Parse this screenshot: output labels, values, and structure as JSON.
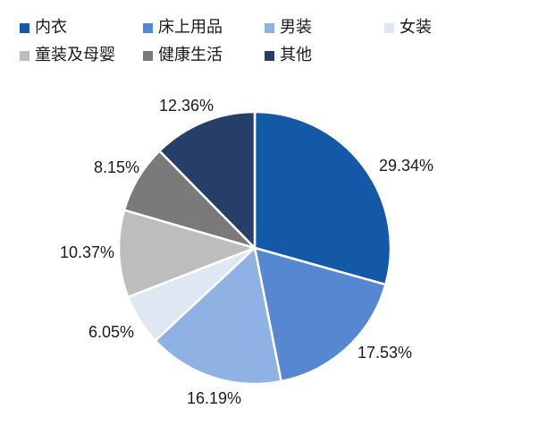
{
  "chart_data": {
    "type": "pie",
    "title": "",
    "legend_placement": "top",
    "categories": [
      "内衣",
      "床上用品",
      "男装",
      "女装",
      "童装及母婴",
      "健康生活",
      "其他"
    ],
    "values": [
      29.34,
      17.53,
      16.19,
      6.05,
      10.37,
      8.15,
      12.36
    ],
    "value_labels": [
      "29.34%",
      "17.53%",
      "16.19%",
      "6.05%",
      "10.37%",
      "8.15%",
      "12.36%"
    ],
    "colors": [
      "#1458a8",
      "#5588d0",
      "#8fb1e3",
      "#dfe7f3",
      "#bdbdbd",
      "#7a7a7a",
      "#253f68"
    ],
    "start_angle": "12 o'clock",
    "direction": "clockwise"
  }
}
